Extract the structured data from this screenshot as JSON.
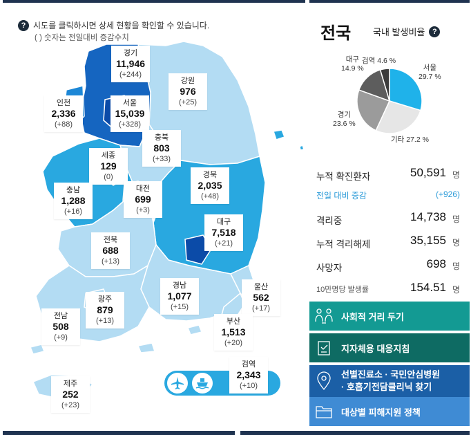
{
  "map_panel": {
    "help_line": "시도를 클릭하시면 상세 현황을 확인할 수 있습니다.",
    "help_sub": "( ) 숫자는 전일대비 증감수치",
    "regions": [
      {
        "id": "gyeonggi",
        "name": "경기",
        "value": "11,946",
        "diff": "(+244)"
      },
      {
        "id": "gangwon",
        "name": "강원",
        "value": "976",
        "diff": "(+25)"
      },
      {
        "id": "incheon",
        "name": "인천",
        "value": "2,336",
        "diff": "(+88)"
      },
      {
        "id": "seoul",
        "name": "서울",
        "value": "15,039",
        "diff": "(+328)"
      },
      {
        "id": "chungbuk",
        "name": "충북",
        "value": "803",
        "diff": "(+33)"
      },
      {
        "id": "sejong",
        "name": "세종",
        "value": "129",
        "diff": "(0)"
      },
      {
        "id": "chungnam",
        "name": "충남",
        "value": "1,288",
        "diff": "(+16)"
      },
      {
        "id": "daejeon",
        "name": "대전",
        "value": "699",
        "diff": "(+3)"
      },
      {
        "id": "gyeongbuk",
        "name": "경북",
        "value": "2,035",
        "diff": "(+48)"
      },
      {
        "id": "daegu",
        "name": "대구",
        "value": "7,518",
        "diff": "(+21)"
      },
      {
        "id": "jeonbuk",
        "name": "전북",
        "value": "688",
        "diff": "(+13)"
      },
      {
        "id": "gyeongnam",
        "name": "경남",
        "value": "1,077",
        "diff": "(+15)"
      },
      {
        "id": "ulsan",
        "name": "울산",
        "value": "562",
        "diff": "(+17)"
      },
      {
        "id": "gwangju",
        "name": "광주",
        "value": "879",
        "diff": "(+13)"
      },
      {
        "id": "jeonnam",
        "name": "전남",
        "value": "508",
        "diff": "(+9)"
      },
      {
        "id": "busan",
        "name": "부산",
        "value": "1,513",
        "diff": "(+20)"
      },
      {
        "id": "quarantine",
        "name": "검역",
        "value": "2,343",
        "diff": "(+10)"
      },
      {
        "id": "jeju",
        "name": "제주",
        "value": "252",
        "diff": "(+23)"
      }
    ],
    "travel_icons": [
      "airplane-icon",
      "ship-icon"
    ]
  },
  "summary": {
    "title": "전국",
    "rate_label": "국내 발생비율",
    "pie": [
      {
        "name": "서울",
        "pct": "29.7 %",
        "value": 29.7,
        "color": "#1fb2ea"
      },
      {
        "name": "기타",
        "pct": "27.2 %",
        "value": 27.2,
        "color": "#e6e6e6"
      },
      {
        "name": "경기",
        "pct": "23.6 %",
        "value": 23.6,
        "color": "#9b9b9b"
      },
      {
        "name": "대구",
        "pct": "14.9 %",
        "value": 14.9,
        "color": "#5d5d5d"
      },
      {
        "name": "검역",
        "pct": "4.6 %",
        "value": 4.6,
        "color": "#3c3c3c"
      }
    ],
    "stats": [
      {
        "key": "누적 확진환자",
        "value": "50,591",
        "unit": "명",
        "kind": "main"
      },
      {
        "key": "전일 대비 증감",
        "value": "(+926)",
        "unit": "",
        "kind": "inc"
      },
      {
        "key": "격리중",
        "value": "14,738",
        "unit": "명",
        "kind": "main"
      },
      {
        "key": "누적 격리해제",
        "value": "35,155",
        "unit": "명",
        "kind": "main"
      },
      {
        "key": "사망자",
        "value": "698",
        "unit": "명",
        "kind": "main"
      },
      {
        "key": "10만명당 발생률",
        "value": "154.51",
        "unit": "명",
        "kind": "small"
      }
    ]
  },
  "buttons": [
    {
      "label": "사회적 거리 두기",
      "icon": "people-distance-icon",
      "color": "#139a93"
    },
    {
      "label": "지자체용 대응지침",
      "icon": "checklist-icon",
      "color": "#0e6b63"
    },
    {
      "label_line1": "선별진료소 · 국민안심병원",
      "label_line2": "· 호흡기전담클리닉 찾기",
      "icon": "location-pin-icon",
      "color": "#1b5fa6"
    },
    {
      "label": "대상별 피해지원 정책",
      "icon": "folder-icon",
      "color": "#3f8bd4"
    }
  ]
}
